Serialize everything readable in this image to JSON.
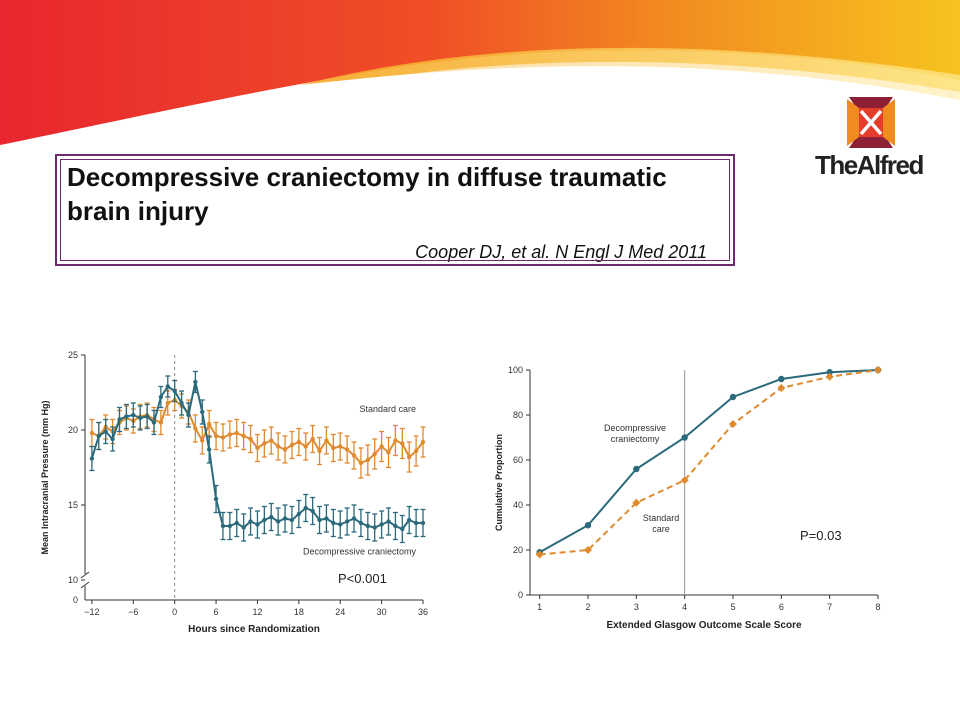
{
  "slide": {
    "title": "Decompressive craniectomy in diffuse traumatic brain injury",
    "citation": "Cooper DJ, et al.  N Engl J Med 2011",
    "logo_text": "TheAlfred",
    "p_values": [
      "P<0.001",
      "P=0.03"
    ]
  },
  "colors": {
    "accent_purple": "#6d2a6d",
    "decompressive": "#2a6a7c",
    "standard": "#e08a2e",
    "banner_red": "#e8262f",
    "banner_orange": "#f28c20",
    "banner_yellow": "#f7c31f"
  },
  "chart_data": [
    {
      "type": "line",
      "xlabel": "Hours since Randomization",
      "ylabel": "Mean Intracranial Pressure (mm Hg)",
      "xlim": [
        -13,
        36
      ],
      "ylim": [
        10,
        25
      ],
      "x_ticks": [
        -12,
        -6,
        0,
        6,
        12,
        18,
        24,
        30,
        36
      ],
      "y_ticks": [
        10,
        15,
        20,
        25
      ],
      "y_zero_label": "0",
      "axis_break": true,
      "vline_x": 0,
      "series": [
        {
          "name": "Standard care",
          "color": "#e08a2e",
          "x": [
            -12,
            -11,
            -10,
            -9,
            -8,
            -7,
            -6,
            -5,
            -4,
            -3,
            -2,
            -1,
            0,
            1,
            2,
            3,
            4,
            5,
            6,
            7,
            8,
            9,
            10,
            11,
            12,
            13,
            14,
            15,
            16,
            17,
            18,
            19,
            20,
            21,
            22,
            23,
            24,
            25,
            26,
            27,
            28,
            29,
            30,
            31,
            32,
            33,
            34,
            35,
            36
          ],
          "y": [
            19.8,
            19.6,
            20.2,
            19.9,
            20.5,
            20.8,
            20.6,
            20.9,
            21.0,
            20.7,
            20.5,
            21.8,
            22.0,
            21.6,
            21.2,
            20.1,
            19.3,
            20.4,
            19.6,
            19.5,
            19.7,
            19.8,
            19.6,
            19.4,
            18.8,
            19.1,
            19.3,
            18.9,
            18.7,
            19.0,
            19.2,
            18.9,
            19.4,
            18.6,
            19.3,
            18.8,
            18.9,
            18.7,
            18.3,
            17.8,
            18.0,
            18.4,
            18.9,
            18.5,
            19.3,
            19.1,
            18.2,
            18.6,
            19.2
          ],
          "err": [
            0.9,
            0.9,
            0.8,
            0.8,
            0.8,
            0.8,
            0.8,
            0.8,
            0.8,
            0.8,
            0.8,
            0.8,
            0.7,
            0.8,
            0.8,
            0.9,
            0.9,
            0.9,
            0.9,
            0.9,
            0.9,
            0.9,
            0.9,
            0.9,
            0.9,
            0.9,
            0.9,
            0.9,
            0.9,
            0.9,
            0.9,
            0.9,
            0.9,
            0.9,
            0.9,
            0.9,
            0.9,
            0.9,
            0.9,
            1.0,
            1.0,
            1.0,
            1.0,
            1.0,
            1.0,
            1.0,
            1.0,
            1.0,
            1.0
          ]
        },
        {
          "name": "Decompressive craniectomy",
          "color": "#2a6a7c",
          "x": [
            -12,
            -11,
            -10,
            -9,
            -8,
            -7,
            -6,
            -5,
            -4,
            -3,
            -2,
            -1,
            0,
            1,
            2,
            3,
            4,
            5,
            6,
            7,
            8,
            9,
            10,
            11,
            12,
            13,
            14,
            15,
            16,
            17,
            18,
            19,
            20,
            21,
            22,
            23,
            24,
            25,
            26,
            27,
            28,
            29,
            30,
            31,
            32,
            33,
            34,
            35,
            36
          ],
          "y": [
            18.1,
            19.6,
            19.9,
            19.4,
            20.7,
            20.9,
            21.0,
            20.8,
            20.9,
            20.5,
            22.2,
            22.9,
            22.6,
            21.8,
            21.0,
            23.2,
            21.2,
            18.7,
            15.4,
            13.6,
            13.6,
            13.8,
            13.5,
            13.9,
            13.7,
            14.0,
            14.2,
            13.9,
            14.1,
            14.0,
            14.4,
            14.8,
            14.6,
            14.0,
            14.1,
            13.8,
            13.7,
            13.9,
            14.1,
            13.8,
            13.6,
            13.5,
            13.7,
            13.9,
            13.6,
            13.4,
            14.0,
            13.8,
            13.8
          ],
          "err": [
            0.8,
            0.9,
            0.8,
            0.8,
            0.8,
            0.8,
            0.8,
            0.8,
            0.8,
            0.8,
            0.7,
            0.7,
            0.7,
            0.8,
            0.8,
            0.7,
            0.8,
            0.9,
            0.9,
            0.9,
            0.9,
            0.9,
            0.9,
            0.9,
            0.9,
            0.9,
            0.9,
            0.9,
            0.9,
            0.9,
            0.9,
            0.9,
            0.9,
            0.9,
            0.9,
            0.9,
            0.9,
            0.9,
            0.9,
            0.9,
            0.9,
            0.9,
            0.9,
            0.9,
            0.9,
            0.9,
            0.9,
            0.9,
            0.9
          ]
        }
      ]
    },
    {
      "type": "line",
      "xlabel": "Extended Glasgow Outcome Scale Score",
      "ylabel": "Cumulative Proportion",
      "xlim": [
        1,
        8
      ],
      "ylim": [
        0,
        100
      ],
      "x_ticks": [
        1,
        2,
        3,
        4,
        5,
        6,
        7,
        8
      ],
      "y_ticks": [
        0,
        20,
        40,
        60,
        80,
        100
      ],
      "vline_x": 4,
      "series": [
        {
          "name": "Decompressive craniectomy",
          "name_lines": [
            "Decompressive",
            "craniectomy"
          ],
          "color": "#2a6a7c",
          "style": "solid",
          "marker": "circle",
          "x": [
            1,
            2,
            3,
            4,
            5,
            6,
            7,
            8
          ],
          "y": [
            19,
            31,
            56,
            70,
            88,
            96,
            99,
            100
          ]
        },
        {
          "name": "Standard care",
          "name_lines": [
            "Standard",
            "care"
          ],
          "color": "#e08a2e",
          "style": "dashed",
          "marker": "diamond",
          "x": [
            1,
            2,
            3,
            4,
            5,
            6,
            7,
            8
          ],
          "y": [
            18,
            20,
            41,
            51,
            76,
            92,
            97,
            100
          ]
        }
      ]
    }
  ]
}
